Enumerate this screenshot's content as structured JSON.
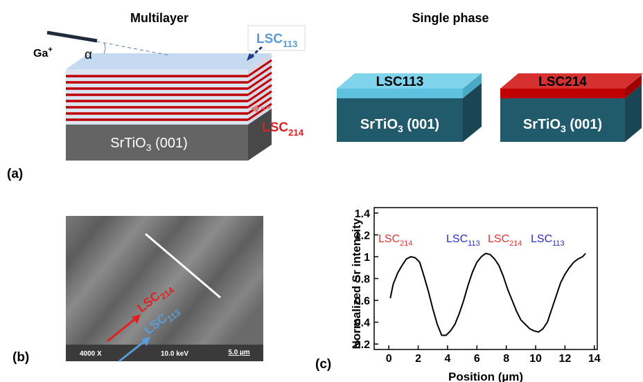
{
  "panel_a": {
    "label": "(a)",
    "multilayer_title": "Multilayer",
    "single_phase_title": "Single phase",
    "ion": {
      "text": "Ga",
      "sup": "+"
    },
    "angle": "α",
    "top_layer": {
      "text": "LSC",
      "sub": "113"
    },
    "stack_layer": {
      "text": "LSC",
      "sub": "214"
    },
    "substrate_multilayer": {
      "text": "SrTiO",
      "sub": "3",
      "rest": " (001)"
    },
    "box_113": {
      "layer": "LSC113",
      "substrate": {
        "text": "SrTiO",
        "sub": "3",
        "rest": " (001)"
      }
    },
    "box_214": {
      "layer": "LSC214",
      "substrate": {
        "text": "SrTiO",
        "sub": "3",
        "rest": " (001)"
      }
    }
  },
  "panel_b": {
    "label": "(b)",
    "arrow_214": {
      "text": "LSC",
      "sub": "214"
    },
    "arrow_113": {
      "text": "LSC",
      "sub": "113"
    },
    "magnification": "4000 X",
    "voltage": "10.0 keV",
    "scale_bar": "5.0 µm"
  },
  "chart_data": {
    "type": "line",
    "panel_label": "(c)",
    "x_label": "Position (µm)",
    "y_label": "Normalized Sr intensity",
    "annotations": [
      {
        "text": "LSC",
        "sub": "214",
        "color": "#e03030"
      },
      {
        "text": "LSC",
        "sub": "113",
        "color": "#2a2ad0"
      },
      {
        "text": "LSC",
        "sub": "214",
        "color": "#e03030"
      },
      {
        "text": "LSC",
        "sub": "113",
        "color": "#2a2ad0"
      }
    ],
    "series": [
      {
        "name": null,
        "color": "#000000",
        "x": [
          0.1,
          0.3,
          0.6,
          0.9,
          1.2,
          1.5,
          1.8,
          2.1,
          2.4,
          2.7,
          3.0,
          3.3,
          3.6,
          3.9,
          4.2,
          4.5,
          4.8,
          5.1,
          5.4,
          5.7,
          6.0,
          6.3,
          6.6,
          6.9,
          7.2,
          7.5,
          7.8,
          8.1,
          8.4,
          8.7,
          9.0,
          9.3,
          9.6,
          9.9,
          10.2,
          10.5,
          10.8,
          11.1,
          11.4,
          11.7,
          12.0,
          12.3,
          12.6,
          12.9,
          13.2,
          13.4
        ],
        "values": [
          0.62,
          0.75,
          0.85,
          0.92,
          0.98,
          1.0,
          0.99,
          0.95,
          0.82,
          0.68,
          0.52,
          0.38,
          0.28,
          0.28,
          0.32,
          0.38,
          0.48,
          0.6,
          0.74,
          0.86,
          0.95,
          1.0,
          1.03,
          1.02,
          0.98,
          0.92,
          0.82,
          0.7,
          0.6,
          0.5,
          0.42,
          0.38,
          0.34,
          0.32,
          0.31,
          0.34,
          0.4,
          0.52,
          0.64,
          0.76,
          0.84,
          0.9,
          0.95,
          0.98,
          1.0,
          1.03
        ]
      }
    ],
    "xlim": [
      -1,
      14.2
    ],
    "ylim": [
      0.15,
      1.45
    ],
    "xticks": [
      0,
      2,
      4,
      6,
      8,
      10,
      12,
      14
    ],
    "yticks": [
      0.2,
      0.4,
      0.6,
      0.8,
      1.0,
      1.2,
      1.4
    ]
  }
}
